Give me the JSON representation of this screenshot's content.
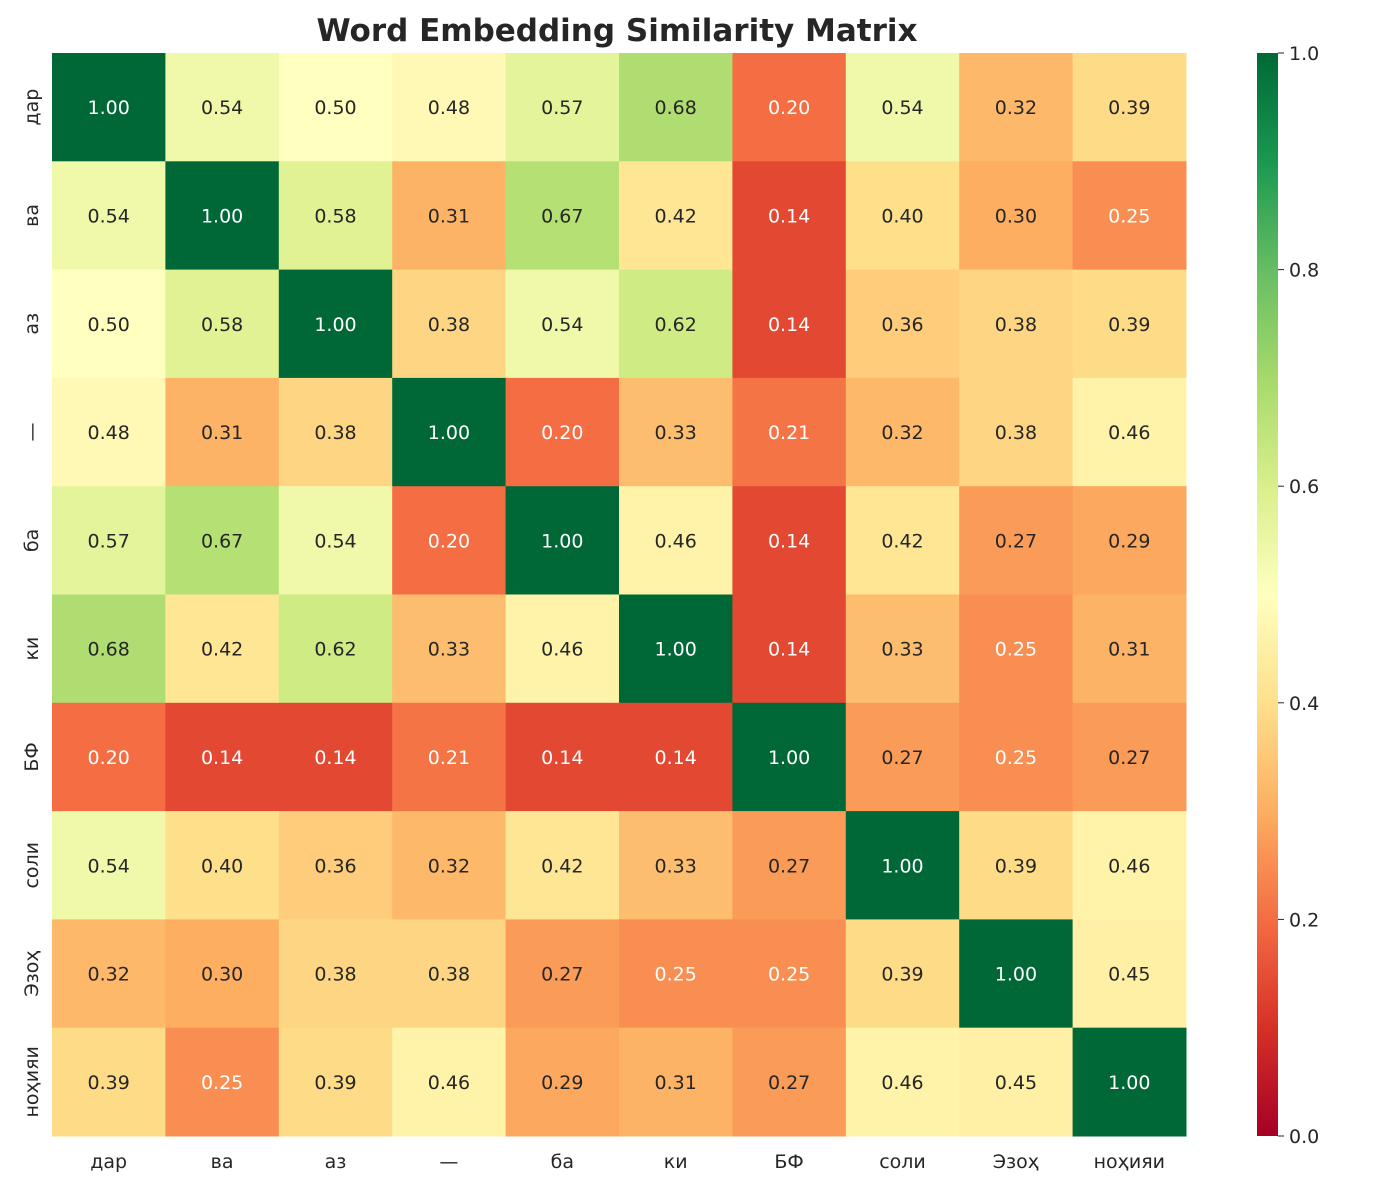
{
  "chart_data": {
    "type": "heatmap",
    "title": "Word Embedding Similarity Matrix",
    "x_labels": [
      "дар",
      "ва",
      "аз",
      "—",
      "ба",
      "ки",
      "БФ",
      "соли",
      "Эзоҳ",
      "ноҳияи"
    ],
    "y_labels": [
      "дар",
      "ва",
      "аз",
      "—",
      "ба",
      "ки",
      "БФ",
      "соли",
      "Эзоҳ",
      "ноҳияи"
    ],
    "values": [
      [
        1.0,
        0.54,
        0.5,
        0.48,
        0.57,
        0.68,
        0.2,
        0.54,
        0.32,
        0.39
      ],
      [
        0.54,
        1.0,
        0.58,
        0.31,
        0.67,
        0.42,
        0.14,
        0.4,
        0.3,
        0.25
      ],
      [
        0.5,
        0.58,
        1.0,
        0.38,
        0.54,
        0.62,
        0.14,
        0.36,
        0.38,
        0.39
      ],
      [
        0.48,
        0.31,
        0.38,
        1.0,
        0.2,
        0.33,
        0.21,
        0.32,
        0.38,
        0.46
      ],
      [
        0.57,
        0.67,
        0.54,
        0.2,
        1.0,
        0.46,
        0.14,
        0.42,
        0.27,
        0.29
      ],
      [
        0.68,
        0.42,
        0.62,
        0.33,
        0.46,
        1.0,
        0.14,
        0.33,
        0.25,
        0.31
      ],
      [
        0.2,
        0.14,
        0.14,
        0.21,
        0.14,
        0.14,
        1.0,
        0.27,
        0.25,
        0.27
      ],
      [
        0.54,
        0.4,
        0.36,
        0.32,
        0.42,
        0.33,
        0.27,
        1.0,
        0.39,
        0.46
      ],
      [
        0.32,
        0.3,
        0.38,
        0.38,
        0.27,
        0.25,
        0.25,
        0.39,
        1.0,
        0.45
      ],
      [
        0.39,
        0.25,
        0.39,
        0.46,
        0.29,
        0.31,
        0.27,
        0.46,
        0.45,
        1.0
      ]
    ],
    "colormap": "RdYlGn",
    "colormap_stops": [
      "#a50026",
      "#d73027",
      "#f46d43",
      "#fdae61",
      "#fee08b",
      "#ffffbf",
      "#d9ef8b",
      "#a6d96a",
      "#66bd63",
      "#1a9850",
      "#006837"
    ],
    "vmin": 0.0,
    "vmax": 1.0,
    "colorbar_ticks": [
      "0.0",
      "0.2",
      "0.4",
      "0.6",
      "0.8",
      "1.0"
    ],
    "annotation_format": "2 decimals"
  }
}
